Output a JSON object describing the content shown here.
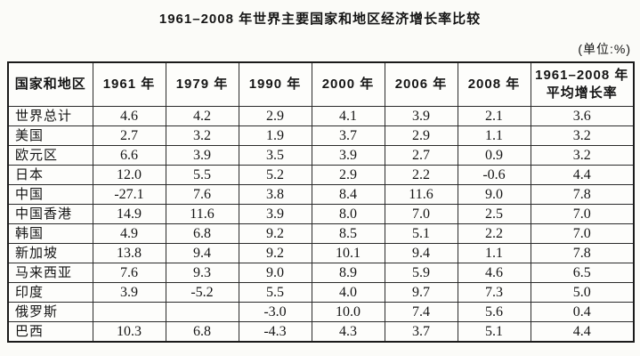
{
  "title": "1961–2008 年世界主要国家和地区经济增长率比较",
  "unit_note": "(单位:%)",
  "colors": {
    "background": "#fbfbf8",
    "text": "#151515",
    "border": "#1a1a1a"
  },
  "table": {
    "columns": [
      "国家和地区",
      "1961 年",
      "1979 年",
      "1990 年",
      "2000 年",
      "2006 年",
      "2008 年",
      "1961–2008 年\n平均增长率"
    ],
    "rows": [
      {
        "region": "世界总计",
        "values": [
          "4.6",
          "4.2",
          "2.9",
          "4.1",
          "3.9",
          "2.1",
          "3.6"
        ]
      },
      {
        "region": "美国",
        "values": [
          "2.7",
          "3.2",
          "1.9",
          "3.7",
          "2.9",
          "1.1",
          "3.2"
        ]
      },
      {
        "region": "欧元区",
        "values": [
          "6.6",
          "3.9",
          "3.5",
          "3.9",
          "2.7",
          "0.9",
          "3.2"
        ]
      },
      {
        "region": "日本",
        "values": [
          "12.0",
          "5.5",
          "5.2",
          "2.9",
          "2.2",
          "-0.6",
          "4.4"
        ]
      },
      {
        "region": "中国",
        "values": [
          "-27.1",
          "7.6",
          "3.8",
          "8.4",
          "11.6",
          "9.0",
          "7.8"
        ]
      },
      {
        "region": "中国香港",
        "values": [
          "14.9",
          "11.6",
          "3.9",
          "8.0",
          "7.0",
          "2.5",
          "7.0"
        ]
      },
      {
        "region": "韩国",
        "values": [
          "4.9",
          "6.8",
          "9.2",
          "8.5",
          "5.1",
          "2.2",
          "7.0"
        ]
      },
      {
        "region": "新加坡",
        "values": [
          "13.8",
          "9.4",
          "9.2",
          "10.1",
          "9.4",
          "1.1",
          "7.8"
        ]
      },
      {
        "region": "马来西亚",
        "values": [
          "7.6",
          "9.3",
          "9.0",
          "8.9",
          "5.9",
          "4.6",
          "6.5"
        ]
      },
      {
        "region": "印度",
        "values": [
          "3.9",
          "-5.2",
          "5.5",
          "4.0",
          "9.7",
          "7.3",
          "5.0"
        ]
      },
      {
        "region": "俄罗斯",
        "values": [
          "",
          "",
          "-3.0",
          "10.0",
          "7.4",
          "5.6",
          "0.4"
        ]
      },
      {
        "region": "巴西",
        "values": [
          "10.3",
          "6.8",
          "-4.3",
          "4.3",
          "3.7",
          "5.1",
          "4.4"
        ]
      }
    ]
  }
}
